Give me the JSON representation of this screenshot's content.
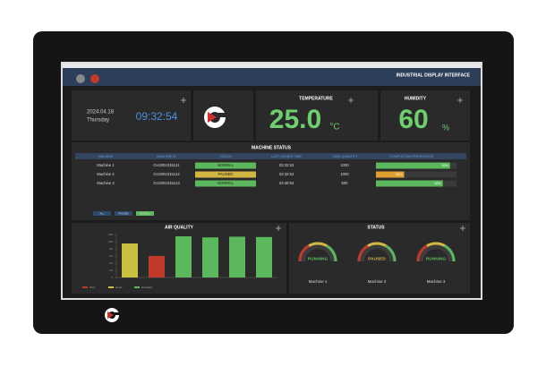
{
  "header": {
    "title": "INDUSTRIAL DISPLAY INTERFACE"
  },
  "datetime": {
    "date": "2024.04.18",
    "weekday": "Thursday",
    "time": "09:32:54"
  },
  "temperature": {
    "title": "TEMPERATURE",
    "value": "25.0",
    "unit": "°C"
  },
  "humidity": {
    "title": "HUMIDITY",
    "value": "60",
    "unit": "%"
  },
  "machine_status": {
    "title": "MACHINE STATUS",
    "columns": [
      "MACHINE",
      "MACHINE ID",
      "STATUS",
      "LAST UPDATE TIME",
      "TUBE QUANTITY",
      "COMPLETION PERCENTAGE"
    ],
    "rows": [
      [
        "Machine 1",
        "GA2001015121",
        "NORMAL",
        "03:32:53",
        "1000"
      ],
      [
        "Machine 2",
        "GA2001015122",
        "PAUSED",
        "03:32:53",
        "1000"
      ],
      [
        "Machine 3",
        "GA2001015123",
        "NORMAL",
        "03:30:53",
        "500"
      ]
    ],
    "status_colors": [
      "#5cb85c",
      "#d4b740",
      "#5cb85c"
    ],
    "completion": [
      92,
      35,
      83
    ],
    "completion_labels": [
      "92%",
      "35%",
      "83%"
    ],
    "completion_colors": [
      "#5cb85c",
      "#e0a030",
      "#5cb85c"
    ],
    "buttons": [
      "ALL",
      "PAUSED",
      "NORMAL"
    ]
  },
  "chart_data": {
    "type": "bar",
    "title": "AIR QUALITY",
    "categories": [
      null,
      null,
      null,
      null,
      null,
      null
    ],
    "values": [
      95,
      60,
      115,
      112,
      114,
      113
    ],
    "colors": [
      "#c9c040",
      "#c0392b",
      "#5cb85c",
      "#5cb85c",
      "#5cb85c",
      "#5cb85c"
    ],
    "ylim": [
      0,
      120
    ],
    "yticks": [
      0,
      20,
      40,
      60,
      80,
      100,
      120
    ],
    "legend": [
      {
        "name": "Poor",
        "color": "#c0392b"
      },
      {
        "name": "Good",
        "color": "#c9c040"
      },
      {
        "name": "Excellent",
        "color": "#5cb85c"
      }
    ]
  },
  "status": {
    "title": "STATUS",
    "gauges": [
      {
        "state": "RUNNING",
        "machine": "Machine 1",
        "color": "#5cb85c"
      },
      {
        "state": "PAUSED",
        "machine": "Machine 2",
        "color": "#d4b740"
      },
      {
        "state": "RUNNING",
        "machine": "Machine 3",
        "color": "#5cb85c"
      }
    ]
  }
}
